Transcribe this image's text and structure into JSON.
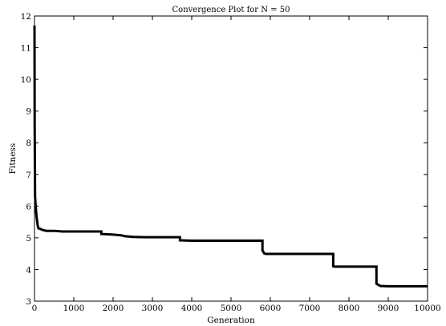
{
  "chart_data": {
    "type": "line",
    "title": "Convergence Plot for N = 50",
    "xlabel": "Generation",
    "ylabel": "Fitness",
    "xlim": [
      0,
      10000
    ],
    "ylim": [
      3,
      12
    ],
    "grid": false,
    "x_ticks": [
      0,
      1000,
      2000,
      3000,
      4000,
      5000,
      6000,
      7000,
      8000,
      9000,
      10000
    ],
    "y_ticks": [
      3,
      4,
      5,
      6,
      7,
      8,
      9,
      10,
      11,
      12
    ],
    "series": [
      {
        "color": "#000000",
        "x": [
          0,
          5,
          15,
          30,
          50,
          80,
          100,
          150,
          200,
          300,
          500,
          700,
          800,
          1000,
          1500,
          1700,
          1700,
          2000,
          2200,
          2300,
          2400,
          2500,
          2800,
          3000,
          3700,
          3700,
          4000,
          5000,
          5800,
          5800,
          5850,
          5900,
          6000,
          7000,
          7600,
          7600,
          7650,
          8000,
          8700,
          8700,
          8800,
          9000,
          10000
        ],
        "y": [
          11.7,
          8.5,
          6.3,
          6.0,
          5.7,
          5.4,
          5.3,
          5.28,
          5.25,
          5.22,
          5.22,
          5.2,
          5.2,
          5.2,
          5.2,
          5.2,
          5.12,
          5.1,
          5.08,
          5.05,
          5.04,
          5.03,
          5.02,
          5.02,
          5.02,
          4.92,
          4.91,
          4.91,
          4.91,
          4.6,
          4.5,
          4.49,
          4.49,
          4.49,
          4.49,
          4.1,
          4.09,
          4.09,
          4.09,
          3.55,
          3.48,
          3.47,
          3.47
        ]
      }
    ]
  }
}
